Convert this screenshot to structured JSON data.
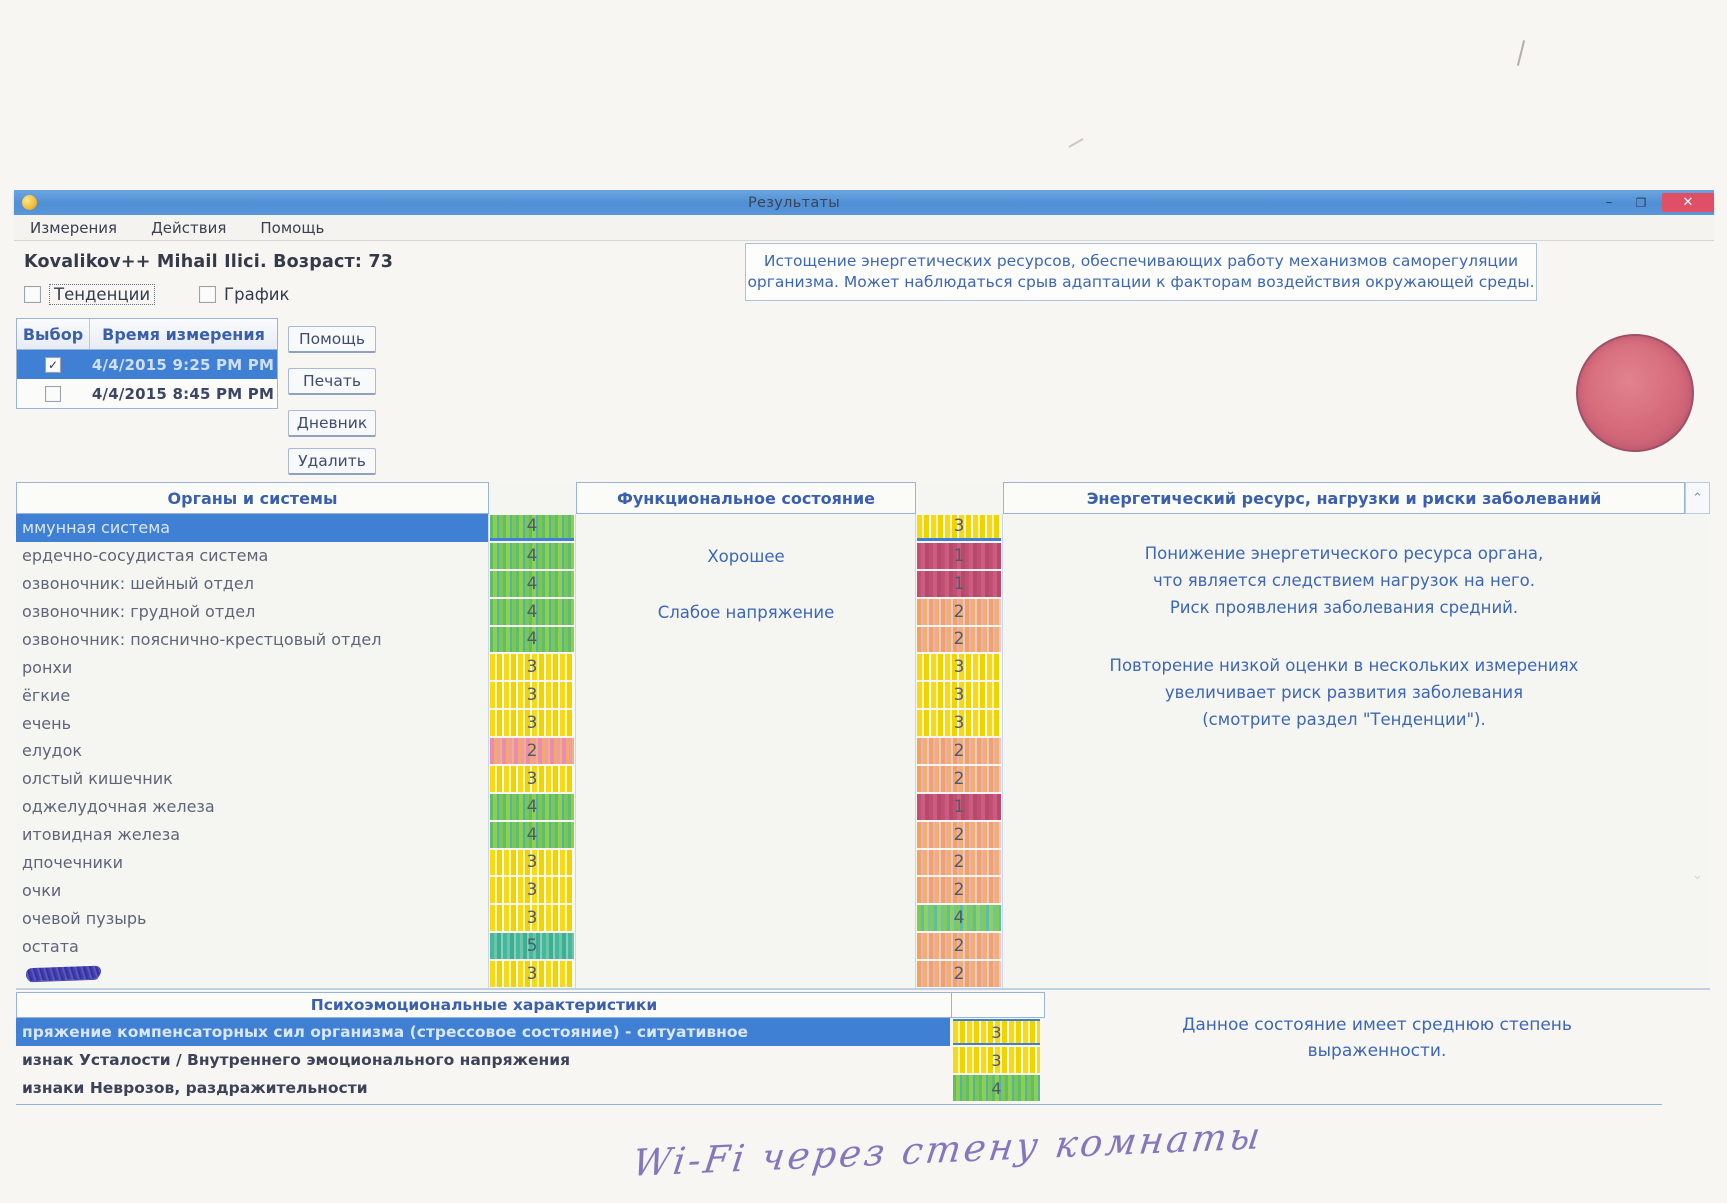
{
  "window": {
    "title": "Результаты",
    "controls": {
      "minimize": "–",
      "restore": "❐",
      "close": "✕"
    }
  },
  "menu": [
    "Измерения",
    "Действия",
    "Помощь"
  ],
  "patient": "Kovalikov++ Mihail Ilici. Возраст: 73",
  "view_toggles": [
    "Тенденции",
    "График"
  ],
  "summary_note": "Истощение энергетических ресурсов, обеспечивающих работу механизмов саморегуляции\nорганизма. Может наблюдаться срыв адаптации к факторам воздействия окружающей среды.",
  "measurements": {
    "headers": [
      "Выбор",
      "Время измерения"
    ],
    "rows": [
      {
        "checked": true,
        "check_glyph": "✓",
        "time": "4/4/2015 9:25 PM PM",
        "selected": true
      },
      {
        "checked": false,
        "check_glyph": "",
        "time": "4/4/2015 8:45 PM PM",
        "selected": false
      }
    ]
  },
  "buttons": [
    "Помощь",
    "Печать",
    "Дневник",
    "Удалить"
  ],
  "status_indicator": {
    "shape": "circle",
    "color": "#d4697a"
  },
  "main_table": {
    "headers": [
      "Органы и системы",
      "Функциональное состояние",
      "Энергетический ресурс, нагрузки и риски заболеваний"
    ],
    "scroll_up_glyph": "⌃",
    "scroll_down_glyph": "⌄",
    "rows": [
      {
        "organ": "ммунная система",
        "s1": "4",
        "c1": "green",
        "s2": "3",
        "c2": "yellow",
        "selected": true
      },
      {
        "organ": "ердечно-сосудистая система",
        "s1": "4",
        "c1": "green",
        "s2": "1",
        "c2": "red"
      },
      {
        "organ": "озвоночник: шейный отдел",
        "s1": "4",
        "c1": "green",
        "s2": "1",
        "c2": "red"
      },
      {
        "organ": "озвоночник: грудной отдел",
        "s1": "4",
        "c1": "green",
        "s2": "2",
        "c2": "orange"
      },
      {
        "organ": "озвоночник: пояснично-крестцовый отдел",
        "s1": "4",
        "c1": "green",
        "s2": "2",
        "c2": "orange"
      },
      {
        "organ": "ронхи",
        "s1": "3",
        "c1": "yellow",
        "s2": "3",
        "c2": "yellow"
      },
      {
        "organ": "ёгкие",
        "s1": "3",
        "c1": "yellow",
        "s2": "3",
        "c2": "yellow"
      },
      {
        "organ": "ечень",
        "s1": "3",
        "c1": "yellow",
        "s2": "3",
        "c2": "yellow"
      },
      {
        "organ": "елудок",
        "s1": "2",
        "c1": "pink",
        "s2": "2",
        "c2": "orange"
      },
      {
        "organ": "олстый кишечник",
        "s1": "3",
        "c1": "yellow",
        "s2": "2",
        "c2": "orange"
      },
      {
        "organ": "оджелудочная железа",
        "s1": "4",
        "c1": "green",
        "s2": "1",
        "c2": "red"
      },
      {
        "organ": "итовидная железа",
        "s1": "4",
        "c1": "green",
        "s2": "2",
        "c2": "orange"
      },
      {
        "organ": "дпочечники",
        "s1": "3",
        "c1": "yellow",
        "s2": "2",
        "c2": "orange"
      },
      {
        "organ": "очки",
        "s1": "3",
        "c1": "yellow",
        "s2": "2",
        "c2": "orange"
      },
      {
        "organ": "очевой пузырь",
        "s1": "3",
        "c1": "yellow",
        "s2": "4",
        "c2": "greenteal"
      },
      {
        "organ": "остата",
        "s1": "5",
        "c1": "teal",
        "s2": "2",
        "c2": "orange"
      },
      {
        "organ": "",
        "scribbled": true,
        "s1": "3",
        "c1": "yellow",
        "s2": "2",
        "c2": "orange"
      }
    ],
    "functional_state_labels": [
      "Хорошее",
      "Слабое напряжение"
    ],
    "energy_notes": [
      "Понижение энергетического ресурса органа,\nчто является следствием нагрузок на него.\nРиск проявления заболевания средний.",
      "Повторение низкой оценки в нескольких измерениях\nувеличивает риск развития заболевания\n(смотрите раздел \"Тенденции\")."
    ]
  },
  "psycho_table": {
    "header": "Психоэмоциональные характеристики",
    "rows": [
      {
        "label": "пряжение компенсаторных сил организма (стрессовое состояние) - ситуативное",
        "score": "3",
        "color": "yellow",
        "selected": true
      },
      {
        "label": "изнак Усталости / Внутреннего эмоционального напряжения",
        "score": "3",
        "color": "yellow"
      },
      {
        "label": "изнаки Неврозов, раздражительности",
        "score": "4",
        "color": "green"
      }
    ],
    "note": "Данное состояние имеет среднюю степень\nвыраженности."
  },
  "handwriting": "Wi-Fi через стену комнаты",
  "colors": {
    "titlebar_blue": "#4f8fd6",
    "selection_blue": "#3f7fd4",
    "close_red": "#e04f66",
    "header_text_blue": "#3a5fae",
    "note_text_blue": "#3c66b8",
    "circle_red": "#d4697a",
    "score_5_teal": "#48b89c",
    "score_4_green": "#7cc657",
    "score_3_yellow": "#f0d400",
    "score_2_orange": "#f2b168",
    "score_2_pink": "#ea8abb",
    "score_1_red": "#c14f73"
  }
}
